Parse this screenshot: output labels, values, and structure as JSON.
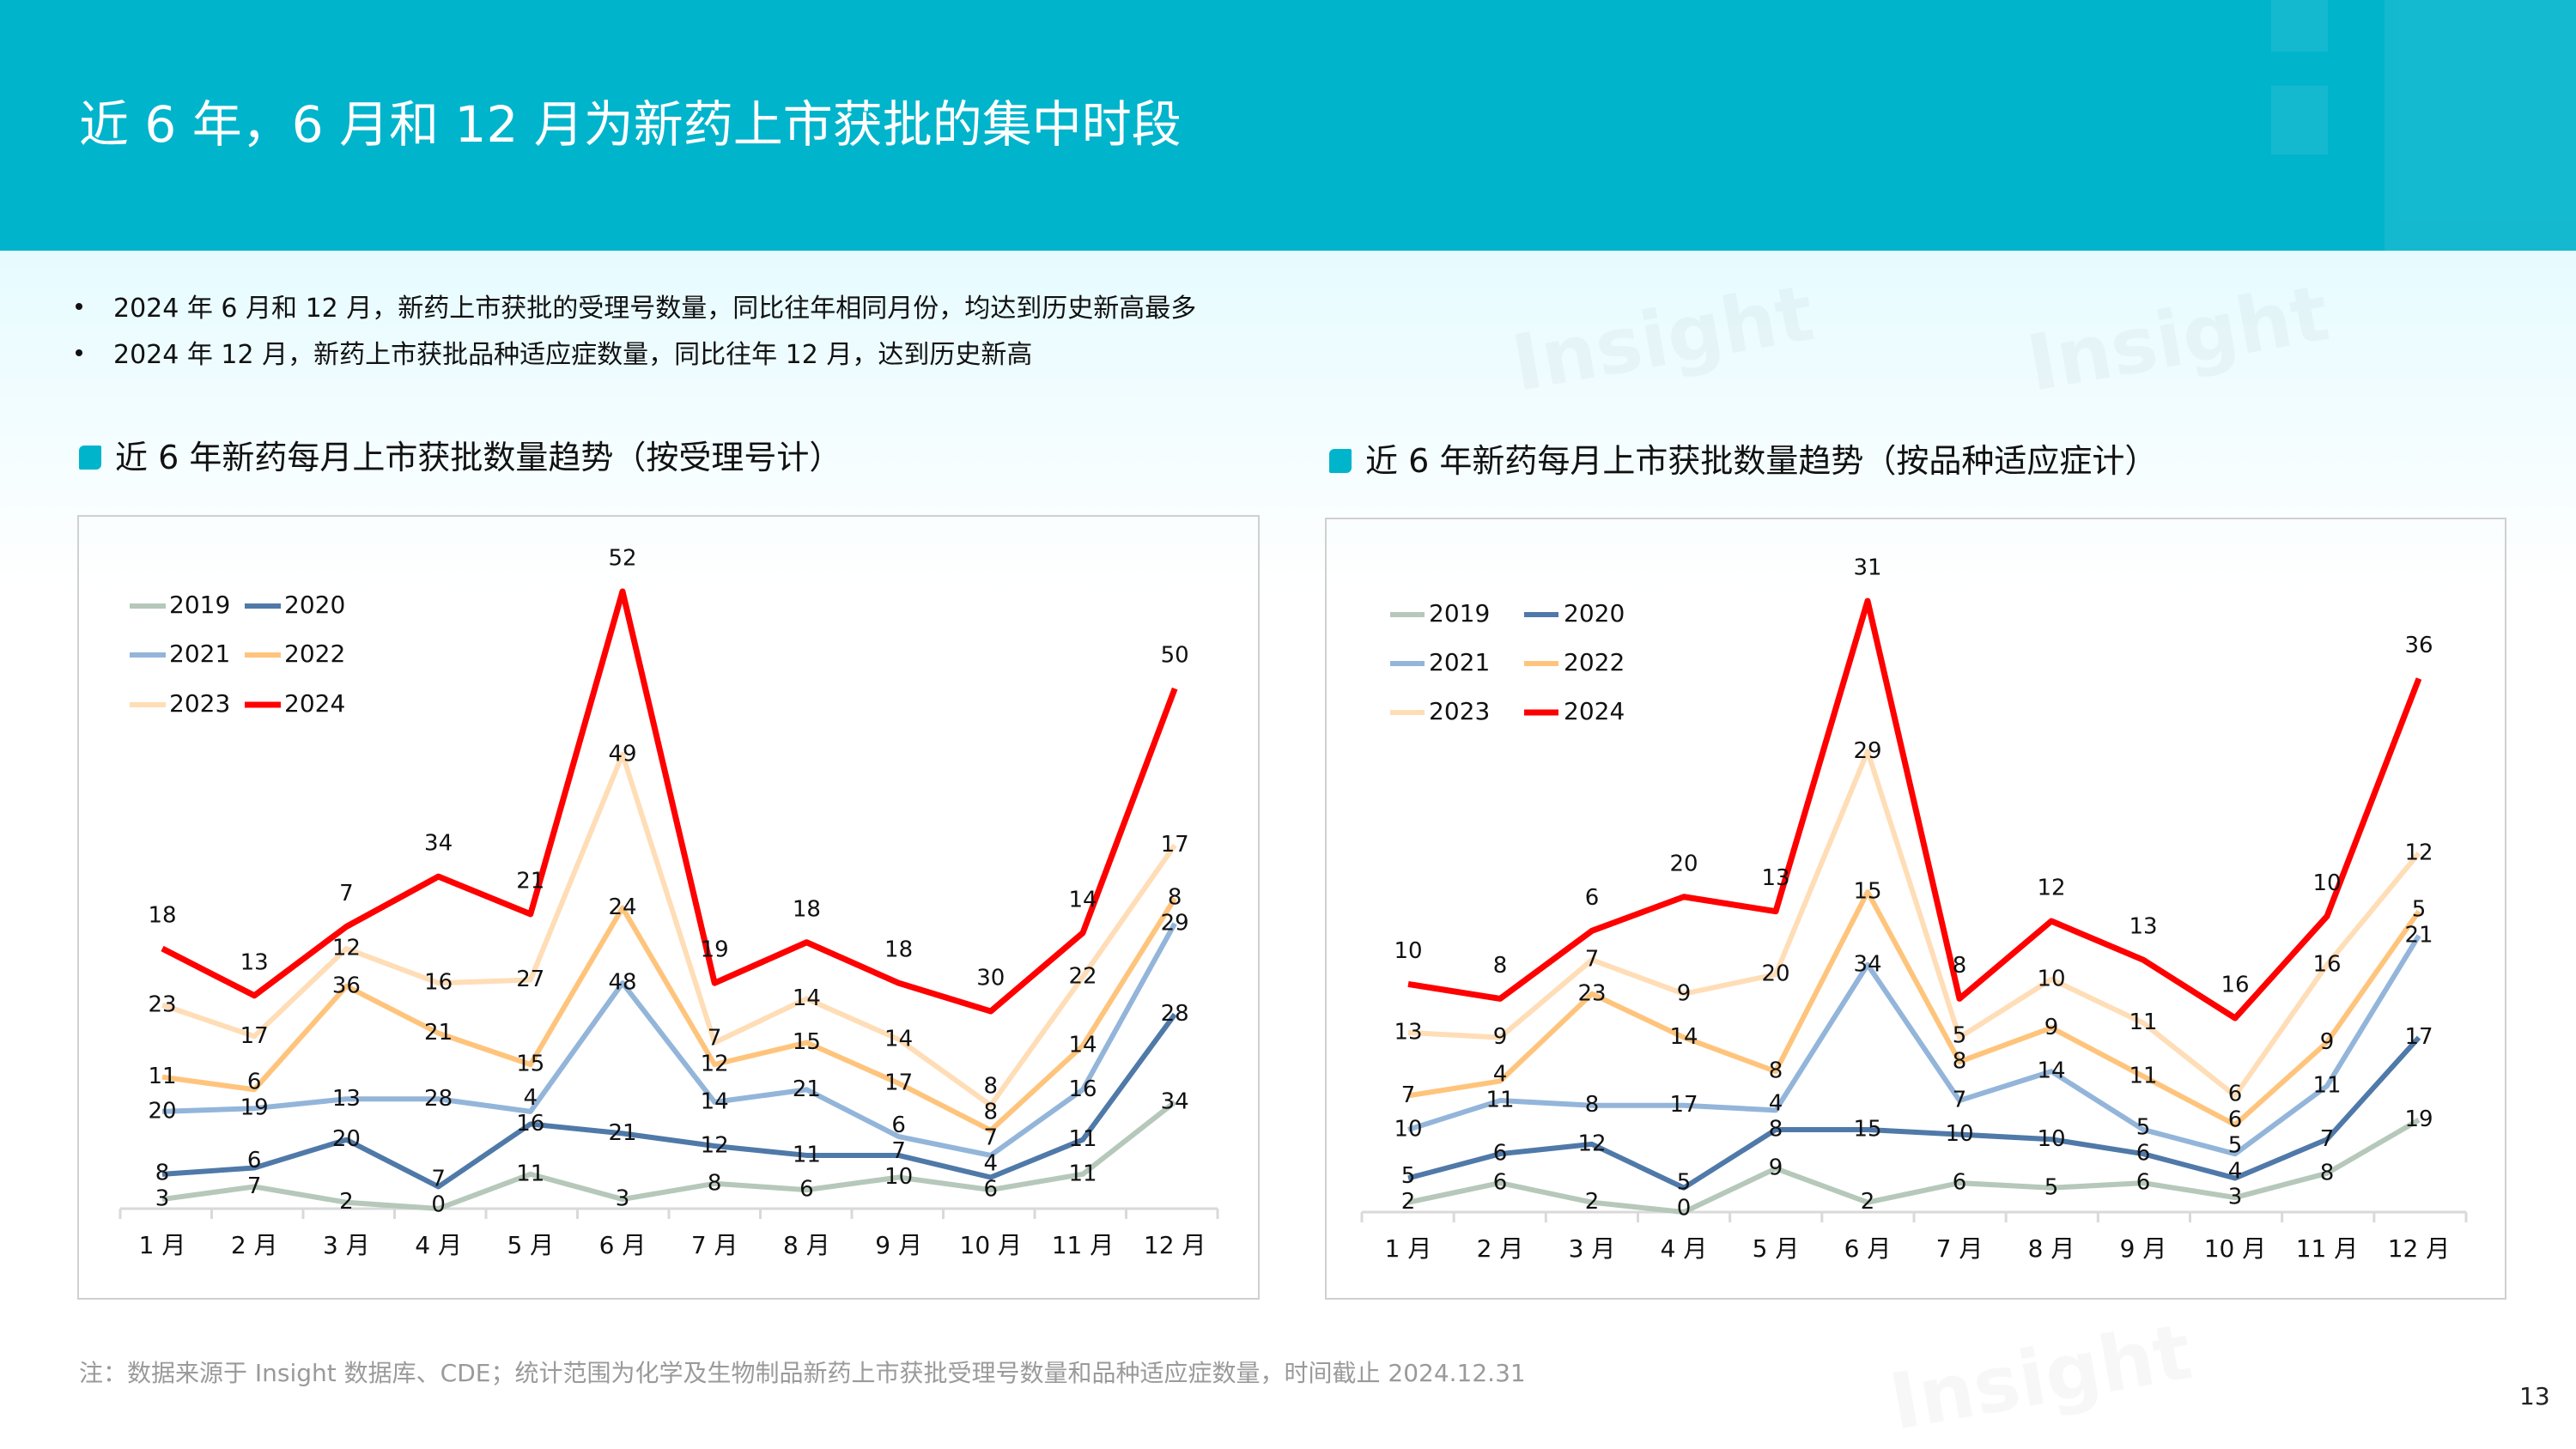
{
  "header": {
    "title": "近 6 年，6 月和 12 月为新药上市获批的集中时段",
    "background_color": "#00B4CC"
  },
  "bullets": [
    "2024 年 6 月和 12 月，新药上市获批的受理号数量，同比往年相同月份，均达到历史新高最多",
    "2024 年 12 月，新药上市获批品种适应症数量，同比往年 12 月，达到历史新高"
  ],
  "watermark": "Insight",
  "series_colors": {
    "2019": "#B5C8BA",
    "2020": "#4F79A8",
    "2021": "#93B5DA",
    "2022": "#FFC47C",
    "2023": "#FFDDB6",
    "2024": "#FF0000"
  },
  "chart_data": [
    {
      "type": "line",
      "stacked": true,
      "title": "近 6 年新药每月上市获批数量趋势（按受理号计）",
      "categories": [
        "1 月",
        "2 月",
        "3 月",
        "4 月",
        "5 月",
        "6 月",
        "7 月",
        "8 月",
        "9 月",
        "10 月",
        "11 月",
        "12 月"
      ],
      "legend": "top-left",
      "grid": false,
      "data_labels": true,
      "series": [
        {
          "name": "2019",
          "values": [
            3,
            7,
            2,
            0,
            11,
            3,
            8,
            6,
            10,
            6,
            11,
            34
          ]
        },
        {
          "name": "2020",
          "values": [
            8,
            6,
            20,
            7,
            16,
            21,
            12,
            11,
            7,
            4,
            11,
            28
          ]
        },
        {
          "name": "2021",
          "values": [
            20,
            19,
            13,
            28,
            4,
            48,
            14,
            21,
            6,
            7,
            16,
            29
          ]
        },
        {
          "name": "2022",
          "values": [
            11,
            6,
            36,
            21,
            15,
            24,
            12,
            15,
            17,
            8,
            14,
            8
          ]
        },
        {
          "name": "2023",
          "values": [
            23,
            17,
            12,
            16,
            27,
            49,
            7,
            14,
            14,
            8,
            22,
            17
          ]
        },
        {
          "name": "2024",
          "values": [
            18,
            13,
            7,
            34,
            21,
            52,
            19,
            18,
            18,
            30,
            14,
            50
          ]
        }
      ]
    },
    {
      "type": "line",
      "stacked": true,
      "title": "近 6 年新药每月上市获批数量趋势（按品种适应症计）",
      "categories": [
        "1 月",
        "2 月",
        "3 月",
        "4 月",
        "5 月",
        "6 月",
        "7 月",
        "8 月",
        "9 月",
        "10 月",
        "11 月",
        "12 月"
      ],
      "legend": "top-left",
      "grid": false,
      "data_labels": true,
      "series": [
        {
          "name": "2019",
          "values": [
            2,
            6,
            2,
            0,
            9,
            2,
            6,
            5,
            6,
            3,
            8,
            19
          ]
        },
        {
          "name": "2020",
          "values": [
            5,
            6,
            12,
            5,
            8,
            15,
            10,
            10,
            6,
            4,
            7,
            17
          ]
        },
        {
          "name": "2021",
          "values": [
            10,
            11,
            8,
            17,
            4,
            34,
            7,
            14,
            5,
            5,
            11,
            21
          ]
        },
        {
          "name": "2022",
          "values": [
            7,
            4,
            23,
            14,
            8,
            15,
            8,
            9,
            11,
            6,
            9,
            5
          ]
        },
        {
          "name": "2023",
          "values": [
            13,
            9,
            7,
            9,
            20,
            29,
            5,
            10,
            11,
            6,
            16,
            12
          ]
        },
        {
          "name": "2024",
          "values": [
            10,
            8,
            6,
            20,
            13,
            31,
            8,
            12,
            13,
            16,
            10,
            36
          ]
        }
      ]
    }
  ],
  "footer": {
    "note": "注：数据来源于 Insight 数据库、CDE；统计范围为化学及生物制品新药上市获批受理号数量和品种适应症数量，时间截止 2024.12.31",
    "page_number": "13"
  }
}
